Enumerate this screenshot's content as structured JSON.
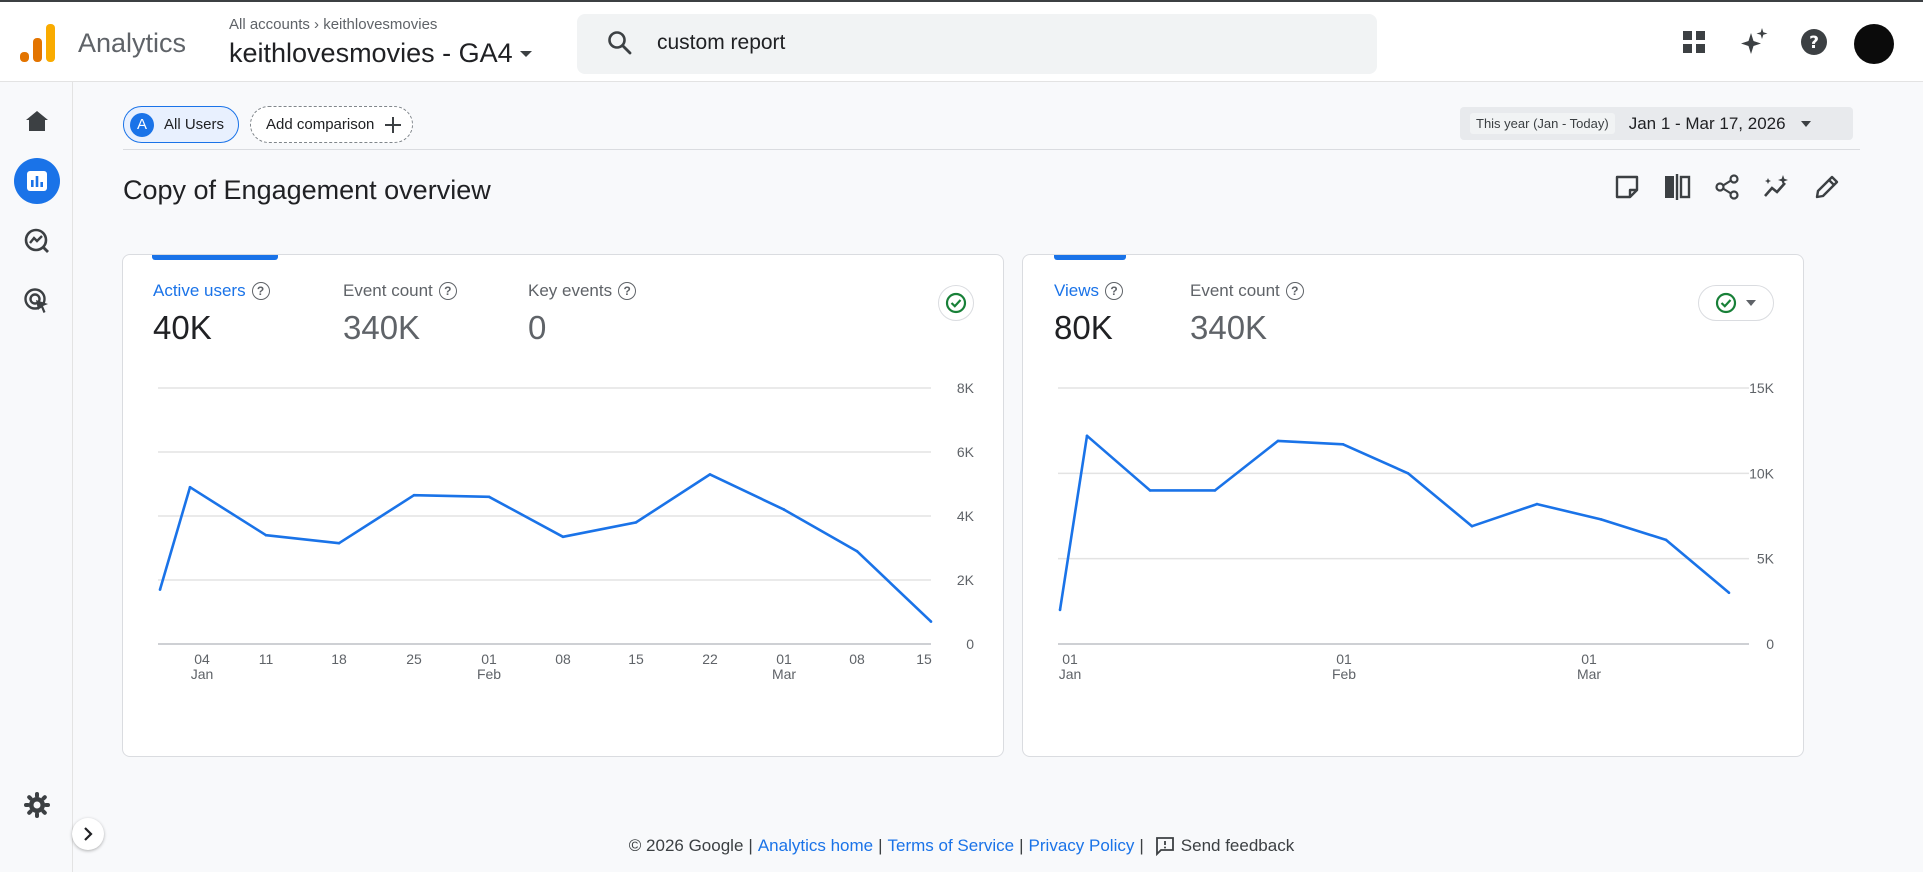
{
  "header": {
    "app_name": "Analytics",
    "breadcrumb_root": "All accounts",
    "breadcrumb_account": "keithlovesmovies",
    "property_name": "keithlovesmovies - GA4",
    "search_value": "custom report",
    "icons": [
      "apps-grid-icon",
      "sparkle-icon",
      "help-icon",
      "avatar"
    ]
  },
  "sidebar": {
    "items": [
      {
        "name": "home-icon",
        "active": false
      },
      {
        "name": "reports-icon",
        "active": true
      },
      {
        "name": "explore-icon",
        "active": false
      },
      {
        "name": "advertising-icon",
        "active": false
      }
    ],
    "settings_icon": "gear-icon"
  },
  "comparison": {
    "segment_letter": "A",
    "segment_label": "All Users",
    "add_label": "Add comparison"
  },
  "date_range": {
    "preset": "This year (Jan - Today)",
    "value": "Jan 1 - Mar 17, 2026"
  },
  "page": {
    "title": "Copy of Engagement overview"
  },
  "cards": [
    {
      "metrics": [
        {
          "label": "Active users",
          "value": "40K",
          "selected": true
        },
        {
          "label": "Event count",
          "value": "340K",
          "selected": false
        },
        {
          "label": "Key events",
          "value": "0",
          "selected": false
        }
      ]
    },
    {
      "metrics": [
        {
          "label": "Views",
          "value": "80K",
          "selected": true
        },
        {
          "label": "Event count",
          "value": "340K",
          "selected": false
        }
      ]
    }
  ],
  "chart_data": [
    {
      "type": "line",
      "series": [
        {
          "values": [
            1700,
            4900,
            3400,
            3150,
            4650,
            4600,
            3350,
            3800,
            5300,
            4200,
            2900,
            700
          ]
        }
      ],
      "x": [
        "Jan 1",
        "Jan 4",
        "Jan 11",
        "Jan 18",
        "Jan 25",
        "Feb 1",
        "Feb 8",
        "Feb 15",
        "Feb 22",
        "Mar 1",
        "Mar 8",
        "Mar 15"
      ],
      "x_tick_labels": [
        {
          "day": "04",
          "month": "Jan"
        },
        {
          "day": "11",
          "month": ""
        },
        {
          "day": "18",
          "month": ""
        },
        {
          "day": "25",
          "month": ""
        },
        {
          "day": "01",
          "month": "Feb"
        },
        {
          "day": "08",
          "month": ""
        },
        {
          "day": "15",
          "month": ""
        },
        {
          "day": "22",
          "month": ""
        },
        {
          "day": "01",
          "month": "Mar"
        },
        {
          "day": "08",
          "month": ""
        },
        {
          "day": "15",
          "month": ""
        }
      ],
      "y_ticks": [
        "8K",
        "6K",
        "4K",
        "2K",
        "0"
      ],
      "ylim": [
        0,
        8000
      ],
      "color": "#1a73e8",
      "grid": true
    },
    {
      "type": "line",
      "series": [
        {
          "values": [
            2000,
            12200,
            9000,
            9000,
            11900,
            11700,
            10000,
            6900,
            8200,
            7300,
            6100,
            3000
          ]
        }
      ],
      "x": [
        "Jan 1",
        "Jan 5",
        "Jan 15",
        "Jan 25",
        "Feb 1",
        "Feb 8",
        "Feb 15",
        "Feb 22",
        "Mar 1",
        "Mar 6",
        "Mar 11",
        "Mar 16"
      ],
      "x_tick_labels": [
        {
          "day": "01",
          "month": "Jan"
        },
        {
          "day": "01",
          "month": "Feb"
        },
        {
          "day": "01",
          "month": "Mar"
        }
      ],
      "y_ticks": [
        "15K",
        "10K",
        "5K",
        "0"
      ],
      "ylim": [
        0,
        15000
      ],
      "color": "#1a73e8",
      "grid": true
    }
  ],
  "footer": {
    "copyright": "© 2026 Google",
    "links": [
      "Analytics home",
      "Terms of Service",
      "Privacy Policy"
    ],
    "feedback": "Send feedback"
  }
}
